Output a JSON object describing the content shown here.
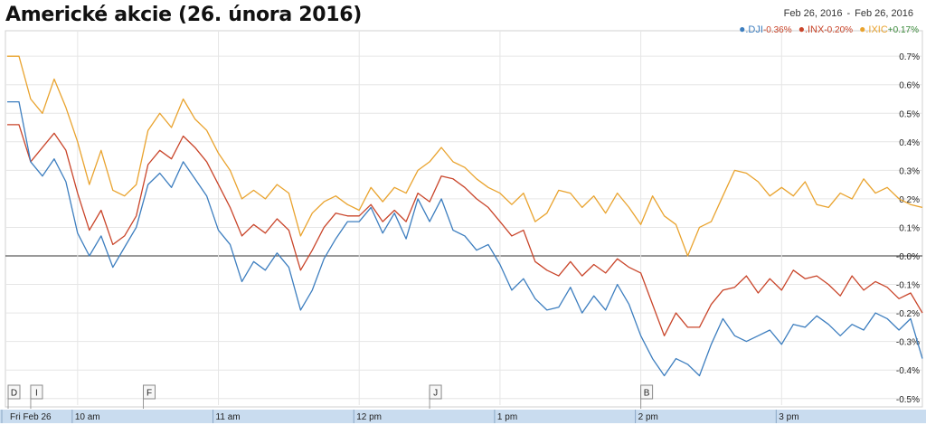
{
  "header": {
    "title": "Americké akcie (26. února 2016)",
    "date_from": "Feb 26, 2016",
    "date_sep": "-",
    "date_to": "Feb 26, 2016"
  },
  "colors": {
    "DJI": "#3d7ebf",
    "INX": "#c9452a",
    "IXIC": "#e9a32e",
    "grid": "#e6e6e6",
    "zero": "#333333",
    "timebar": "#c9dcef"
  },
  "chart_data": {
    "type": "line",
    "title": "Americké akcie (26. února 2016)",
    "x_label": "",
    "y_label": "",
    "x_range": [
      "9:30",
      "16:00"
    ],
    "y_unit": "%",
    "y_range": [
      -0.55,
      0.75
    ],
    "y_ticks": [
      "0.7%",
      "0.6%",
      "0.5%",
      "0.4%",
      "0.3%",
      "0.2%",
      "0.1%",
      "-0.0%",
      "-0.1%",
      "-0.2%",
      "-0.3%",
      "-0.4%",
      "-0.5%"
    ],
    "y_tick_values": [
      0.7,
      0.6,
      0.5,
      0.4,
      0.3,
      0.2,
      0.1,
      0.0,
      -0.1,
      -0.2,
      -0.3,
      -0.4,
      -0.5
    ],
    "x_ticks": [
      {
        "label": "Fri Feb 26",
        "minute": 0
      },
      {
        "label": "10 am",
        "minute": 30
      },
      {
        "label": "11 am",
        "minute": 90
      },
      {
        "label": "12 pm",
        "minute": 150
      },
      {
        "label": "1 pm",
        "minute": 210
      },
      {
        "label": "2 pm",
        "minute": 270
      },
      {
        "label": "3 pm",
        "minute": 330
      }
    ],
    "legend": [
      {
        "symbol": ".DJI",
        "change": "-0.36%",
        "color": "#3d7ebf"
      },
      {
        "symbol": ".INX",
        "change": "-0.20%",
        "color": "#c9452a"
      },
      {
        "symbol": ".IXIC",
        "change": "+0.17%",
        "color": "#e9a32e"
      }
    ],
    "legend_position": "top-right",
    "grid": true,
    "event_markers": [
      {
        "letter": "D",
        "minute": 0
      },
      {
        "letter": "I",
        "minute": 10
      },
      {
        "letter": "F",
        "minute": 58
      },
      {
        "letter": "J",
        "minute": 180
      },
      {
        "letter": "B",
        "minute": 270
      }
    ],
    "x": [
      0,
      5,
      10,
      15,
      20,
      25,
      30,
      35,
      40,
      45,
      50,
      55,
      60,
      65,
      70,
      75,
      80,
      85,
      90,
      95,
      100,
      105,
      110,
      115,
      120,
      125,
      130,
      135,
      140,
      145,
      150,
      155,
      160,
      165,
      170,
      175,
      180,
      185,
      190,
      195,
      200,
      205,
      210,
      215,
      220,
      225,
      230,
      235,
      240,
      245,
      250,
      255,
      260,
      265,
      270,
      275,
      280,
      285,
      290,
      295,
      300,
      305,
      310,
      315,
      320,
      325,
      330,
      335,
      340,
      345,
      350,
      355,
      360,
      365,
      370,
      375,
      380,
      385,
      390
    ],
    "series": [
      {
        "name": ".DJI",
        "values": [
          0.54,
          0.54,
          0.33,
          0.28,
          0.34,
          0.26,
          0.08,
          0.0,
          0.07,
          -0.04,
          0.03,
          0.1,
          0.25,
          0.29,
          0.24,
          0.33,
          0.27,
          0.21,
          0.09,
          0.04,
          -0.09,
          -0.02,
          -0.05,
          0.01,
          -0.04,
          -0.19,
          -0.12,
          -0.01,
          0.06,
          0.12,
          0.12,
          0.17,
          0.08,
          0.15,
          0.06,
          0.2,
          0.12,
          0.2,
          0.09,
          0.07,
          0.02,
          0.04,
          -0.03,
          -0.12,
          -0.08,
          -0.15,
          -0.19,
          -0.18,
          -0.11,
          -0.2,
          -0.14,
          -0.19,
          -0.1,
          -0.17,
          -0.28,
          -0.36,
          -0.42,
          -0.36,
          -0.38,
          -0.42,
          -0.31,
          -0.22,
          -0.28,
          -0.3,
          -0.28,
          -0.26,
          -0.31,
          -0.24,
          -0.25,
          -0.21,
          -0.24,
          -0.28,
          -0.24,
          -0.26,
          -0.2,
          -0.22,
          -0.26,
          -0.22,
          -0.36
        ]
      },
      {
        "name": ".INX",
        "values": [
          0.46,
          0.46,
          0.33,
          0.38,
          0.43,
          0.37,
          0.22,
          0.09,
          0.16,
          0.04,
          0.07,
          0.14,
          0.32,
          0.37,
          0.34,
          0.42,
          0.38,
          0.33,
          0.25,
          0.17,
          0.07,
          0.11,
          0.08,
          0.13,
          0.09,
          -0.05,
          0.02,
          0.1,
          0.15,
          0.14,
          0.14,
          0.18,
          0.12,
          0.16,
          0.12,
          0.22,
          0.19,
          0.28,
          0.27,
          0.24,
          0.2,
          0.17,
          0.12,
          0.07,
          0.09,
          -0.02,
          -0.05,
          -0.07,
          -0.02,
          -0.07,
          -0.03,
          -0.06,
          -0.01,
          -0.04,
          -0.06,
          -0.17,
          -0.28,
          -0.2,
          -0.25,
          -0.25,
          -0.17,
          -0.12,
          -0.11,
          -0.07,
          -0.13,
          -0.08,
          -0.12,
          -0.05,
          -0.08,
          -0.07,
          -0.1,
          -0.14,
          -0.07,
          -0.12,
          -0.09,
          -0.11,
          -0.15,
          -0.13,
          -0.2
        ]
      },
      {
        "name": ".IXIC",
        "values": [
          0.7,
          0.7,
          0.55,
          0.5,
          0.62,
          0.52,
          0.4,
          0.25,
          0.37,
          0.23,
          0.21,
          0.25,
          0.44,
          0.5,
          0.45,
          0.55,
          0.48,
          0.44,
          0.36,
          0.3,
          0.2,
          0.23,
          0.2,
          0.25,
          0.22,
          0.07,
          0.15,
          0.19,
          0.21,
          0.18,
          0.16,
          0.24,
          0.19,
          0.24,
          0.22,
          0.3,
          0.33,
          0.38,
          0.33,
          0.31,
          0.27,
          0.24,
          0.22,
          0.18,
          0.22,
          0.12,
          0.15,
          0.23,
          0.22,
          0.17,
          0.21,
          0.15,
          0.22,
          0.17,
          0.11,
          0.21,
          0.14,
          0.11,
          0.0,
          0.1,
          0.12,
          0.21,
          0.3,
          0.29,
          0.26,
          0.21,
          0.24,
          0.21,
          0.26,
          0.18,
          0.17,
          0.22,
          0.2,
          0.27,
          0.22,
          0.24,
          0.2,
          0.18,
          0.17
        ]
      }
    ]
  }
}
